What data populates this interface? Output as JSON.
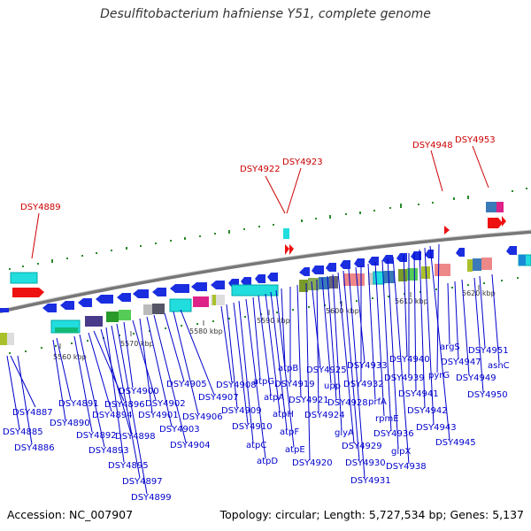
{
  "title": "Desulfitobacterium hafniense Y51, complete genome",
  "accession": "Accession: NC_007907",
  "topology": "Topology: circular; Length: 5,727,534 bp; Genes: 5,137",
  "ticks": [
    "5560 kbp",
    "5570 kbp",
    "5580 kbp",
    "5590 kbp",
    "5600 kbp",
    "5610 kbp",
    "5620 kbp"
  ],
  "red_labels": [
    "DSY4889",
    "DSY4922",
    "DSY4923",
    "DSY4948",
    "DSY4953"
  ],
  "blue_labels": [
    "DSY4887",
    "DSY4885",
    "DSY4886",
    "DSY4891",
    "DSY4890",
    "DSY4892",
    "DSY4893",
    "DSY4894",
    "DSY4896",
    "DSY4898",
    "DSY4895",
    "DSY4897",
    "DSY4899",
    "DSY4900",
    "DSY4902",
    "DSY4901",
    "DSY4903",
    "DSY4904",
    "DSY4905",
    "DSY4906",
    "DSY4907",
    "DSY4908",
    "DSY4909",
    "DSY4910",
    "atpC",
    "atpD",
    "atpG",
    "atpA",
    "atpH",
    "atpF",
    "atpE",
    "atpB",
    "DSY4919",
    "DSY4921",
    "DSY4920",
    "DSY4925",
    "DSY4924",
    "upp",
    "DSY4928",
    "glyA",
    "DSY4929",
    "DSY4930",
    "DSY4931",
    "DSY4933",
    "DSY4932",
    "prfA",
    "rpmE",
    "DSY4936",
    "glpX",
    "DSY4938",
    "DSY4940",
    "DSY4939",
    "DSY4941",
    "DSY4942",
    "DSY4943",
    "DSY4945",
    "pyrG",
    "argS",
    "DSY4947",
    "DSY4949",
    "DSY4951",
    "DSY4950",
    "asnC"
  ]
}
